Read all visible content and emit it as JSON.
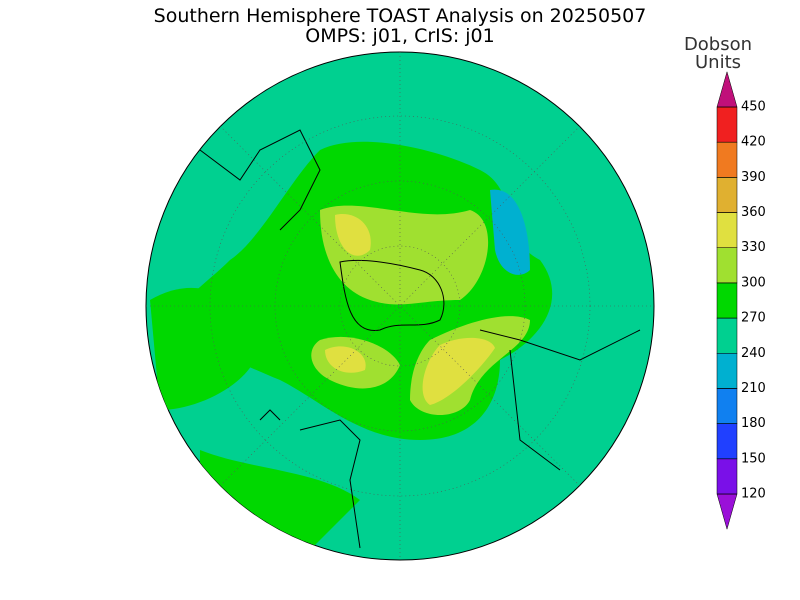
{
  "header": {
    "title": "Southern Hemisphere TOAST Analysis on 20250507",
    "subtitle": "OMPS: j01, CrIS: j01"
  },
  "legend": {
    "title_lines": [
      "Dobson",
      "Units"
    ],
    "ticks": [
      120,
      150,
      180,
      210,
      240,
      270,
      300,
      330,
      360,
      390,
      420,
      450
    ],
    "colors": [
      "#9a10d8",
      "#7a10e8",
      "#2040ff",
      "#1080f0",
      "#00b0d0",
      "#00d090",
      "#00d800",
      "#a0e030",
      "#e0e040",
      "#e0b030",
      "#f07a20",
      "#f02020",
      "#c0107a"
    ]
  }
}
